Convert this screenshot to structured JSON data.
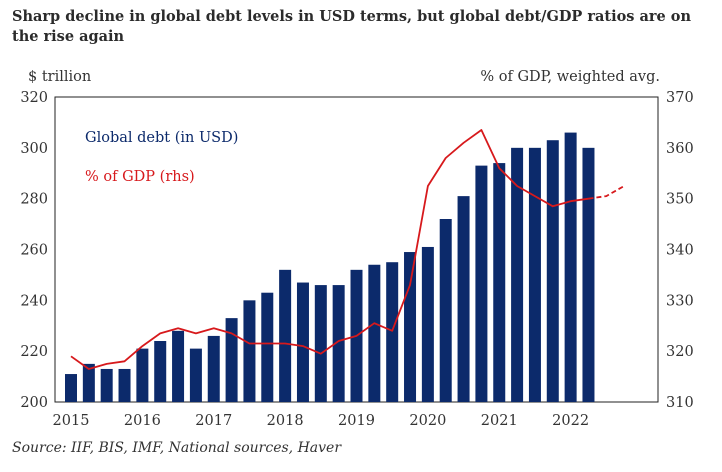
{
  "chart_data": {
    "type": "bar",
    "title": "Sharp decline in global debt levels in USD  terms, but global debt/GDP ratios are on the rise again",
    "left_axis_label": "$ trillion",
    "right_axis_label": "% of GDP, weighted avg.",
    "left_ylim": [
      200,
      320
    ],
    "left_ticks": [
      200,
      220,
      240,
      260,
      280,
      300,
      320
    ],
    "right_ylim": [
      310,
      370
    ],
    "right_ticks": [
      310,
      320,
      330,
      340,
      350,
      360,
      370
    ],
    "x_range": [
      2015,
      2023
    ],
    "x_ticks": [
      2015,
      2016,
      2017,
      2018,
      2019,
      2020,
      2021,
      2022
    ],
    "bar_series": {
      "name": "Global debt (in USD)",
      "color": "#0c2a6b",
      "x": [
        2015.0,
        2015.25,
        2015.5,
        2015.75,
        2016.0,
        2016.25,
        2016.5,
        2016.75,
        2017.0,
        2017.25,
        2017.5,
        2017.75,
        2018.0,
        2018.25,
        2018.5,
        2018.75,
        2019.0,
        2019.25,
        2019.5,
        2019.75,
        2020.0,
        2020.25,
        2020.5,
        2020.75,
        2021.0,
        2021.25,
        2021.5,
        2021.75,
        2022.0,
        2022.25
      ],
      "values": [
        211,
        215,
        213,
        213,
        221,
        224,
        228,
        221,
        226,
        233,
        240,
        243,
        252,
        247,
        246,
        246,
        252,
        254,
        255,
        259,
        261,
        272,
        281,
        293,
        294,
        300,
        300,
        303,
        306,
        300
      ]
    },
    "line_series": {
      "name": "% of GDP (rhs)",
      "color": "#d7191c",
      "x": [
        2015.0,
        2015.25,
        2015.5,
        2015.75,
        2016.0,
        2016.25,
        2016.5,
        2016.75,
        2017.0,
        2017.25,
        2017.5,
        2017.75,
        2018.0,
        2018.25,
        2018.5,
        2018.75,
        2019.0,
        2019.25,
        2019.5,
        2019.75,
        2020.0,
        2020.25,
        2020.5,
        2020.75,
        2021.0,
        2021.25,
        2021.5,
        2021.75,
        2022.0,
        2022.25
      ],
      "values": [
        319,
        316.5,
        317.5,
        318,
        321,
        323.5,
        324.5,
        323.5,
        324.5,
        323.5,
        321.5,
        321.5,
        321.5,
        321,
        319.5,
        322,
        323,
        325.5,
        324,
        333,
        352.5,
        358,
        361,
        363.5,
        356,
        352.5,
        350.5,
        348.5,
        349.5,
        350
      ],
      "projection_x": [
        2022.25,
        2022.5,
        2022.75
      ],
      "projection_values": [
        350,
        350.5,
        352.5
      ]
    }
  },
  "source": "Source: IIF, BIS, IMF, National sources, Haver"
}
